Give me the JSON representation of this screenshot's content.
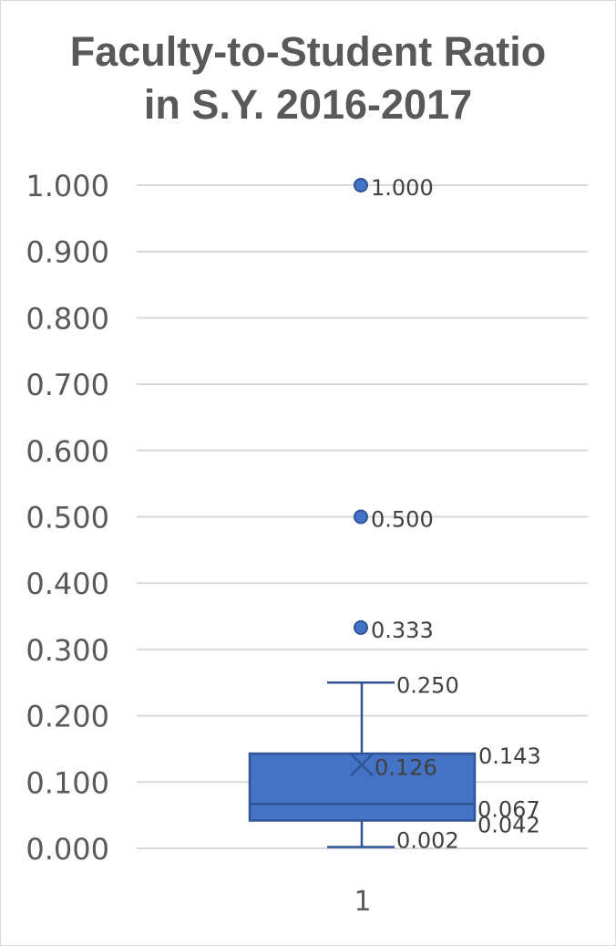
{
  "chart_data": {
    "type": "box",
    "title_lines": [
      "Faculty-to-Student Ratio",
      "in S.Y. 2016-2017"
    ],
    "categories": [
      "1"
    ],
    "ylim": [
      0,
      1
    ],
    "yticks": [
      "0.000",
      "0.100",
      "0.200",
      "0.300",
      "0.400",
      "0.500",
      "0.600",
      "0.700",
      "0.800",
      "0.900",
      "1.000"
    ],
    "grid": true,
    "box": {
      "min": 0.002,
      "q1": 0.042,
      "median": 0.067,
      "mean": 0.126,
      "q3": 0.143,
      "max": 0.25,
      "outliers": [
        0.333,
        0.5,
        1.0
      ]
    },
    "labels": {
      "min": "0.002",
      "q1": "0.042",
      "median": "0.067",
      "mean": "0.126",
      "q3": "0.143",
      "max": "0.250",
      "outliers": [
        "0.333",
        "0.500",
        "1.000"
      ]
    },
    "colors": {
      "box_fill": "#4472c4",
      "box_stroke": "#2f5597",
      "whisker": "#2f5597",
      "grid": "#d9d9d9",
      "text": "#595959"
    }
  }
}
